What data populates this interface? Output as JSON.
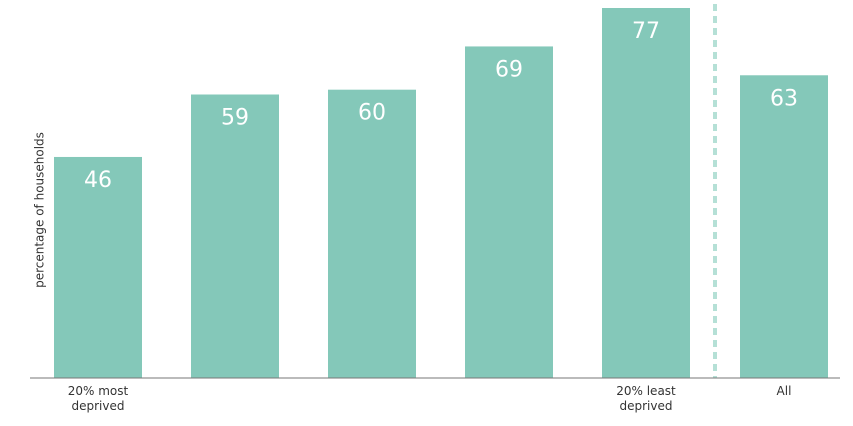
{
  "chart_data": {
    "type": "bar",
    "y_label": "percentage of households",
    "categories": [
      "20% most deprived",
      null,
      null,
      null,
      "20% least deprived",
      "All"
    ],
    "values": [
      46,
      59,
      60,
      69,
      77,
      63
    ],
    "color": "#84c8b9",
    "ylim": [
      0,
      80
    ]
  }
}
